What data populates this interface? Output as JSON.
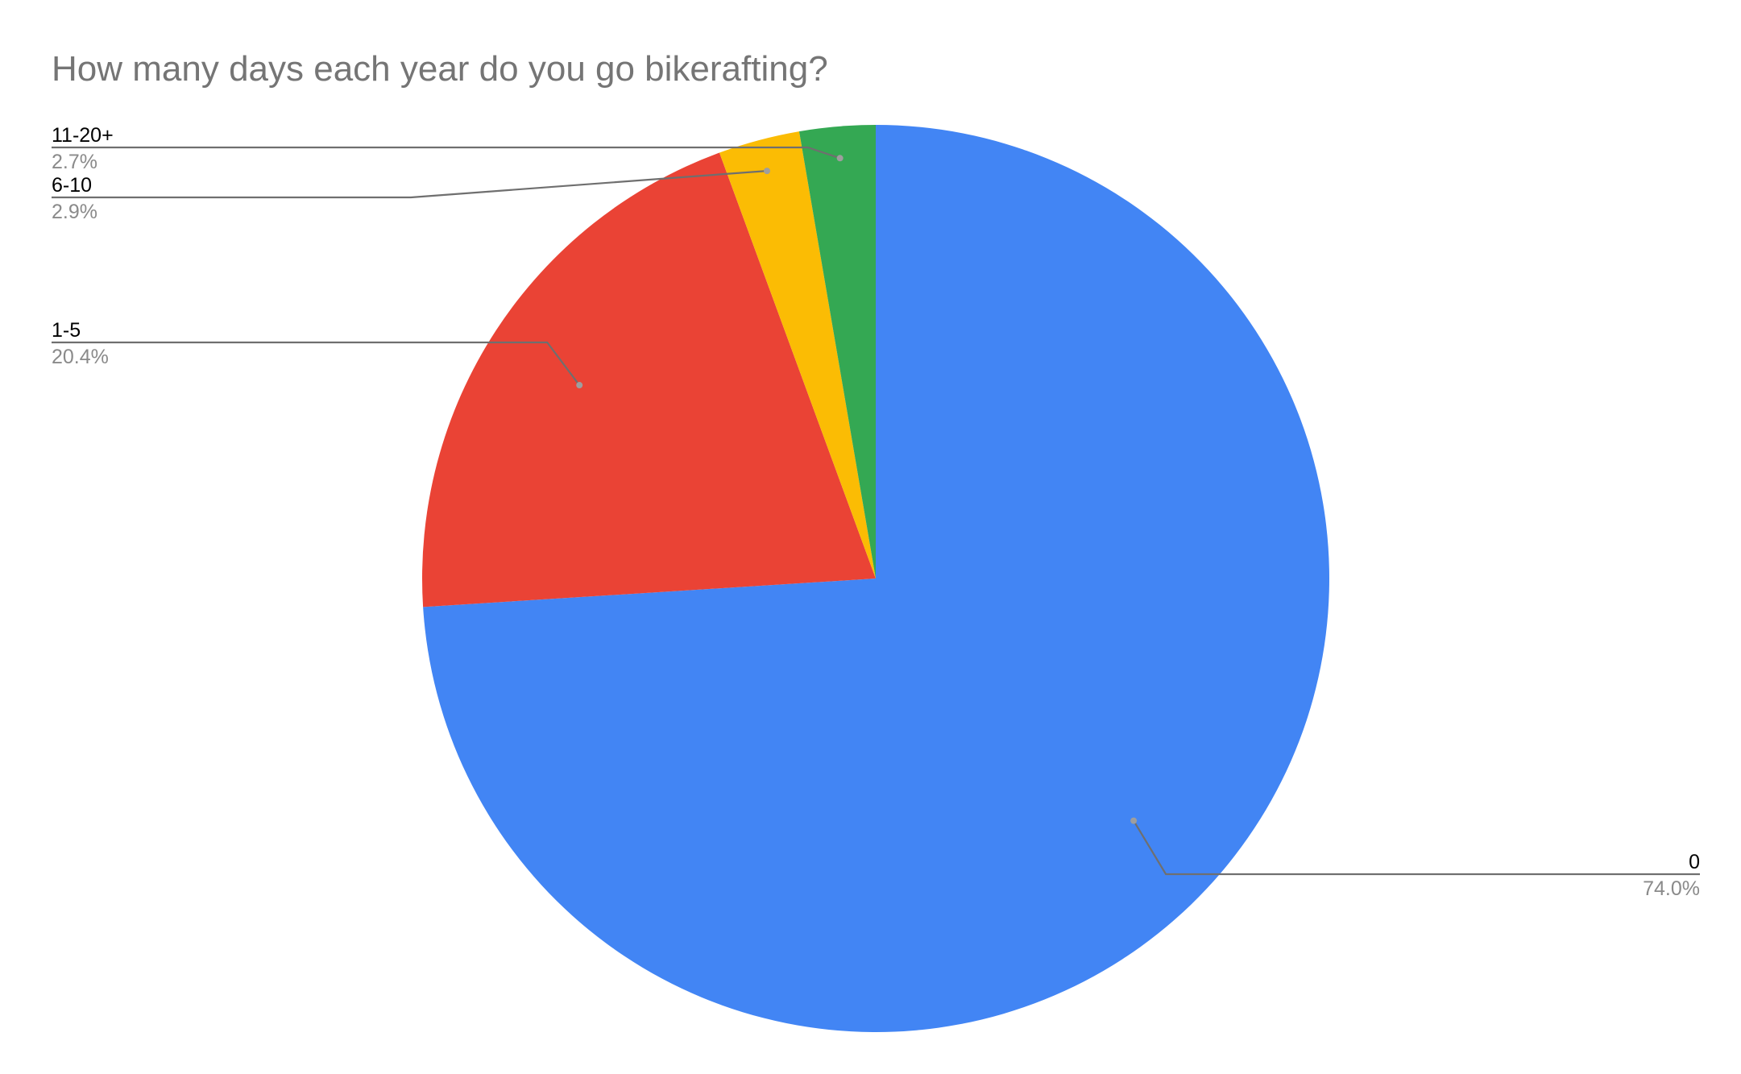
{
  "chart_data": {
    "type": "pie",
    "title": "How many days each year do you go bikerafting?",
    "slices": [
      {
        "label": "0",
        "value": 74.0,
        "percent_label": "74.0%",
        "color": "#4285F4"
      },
      {
        "label": "1-5",
        "value": 20.4,
        "percent_label": "20.4%",
        "color": "#EA4335"
      },
      {
        "label": "6-10",
        "value": 2.9,
        "percent_label": "2.9%",
        "color": "#FBBC04"
      },
      {
        "label": "11-20+",
        "value": 2.7,
        "percent_label": "2.7%",
        "color": "#34A853"
      }
    ],
    "legend": "none",
    "data_labels": "outside-with-leader-lines"
  }
}
